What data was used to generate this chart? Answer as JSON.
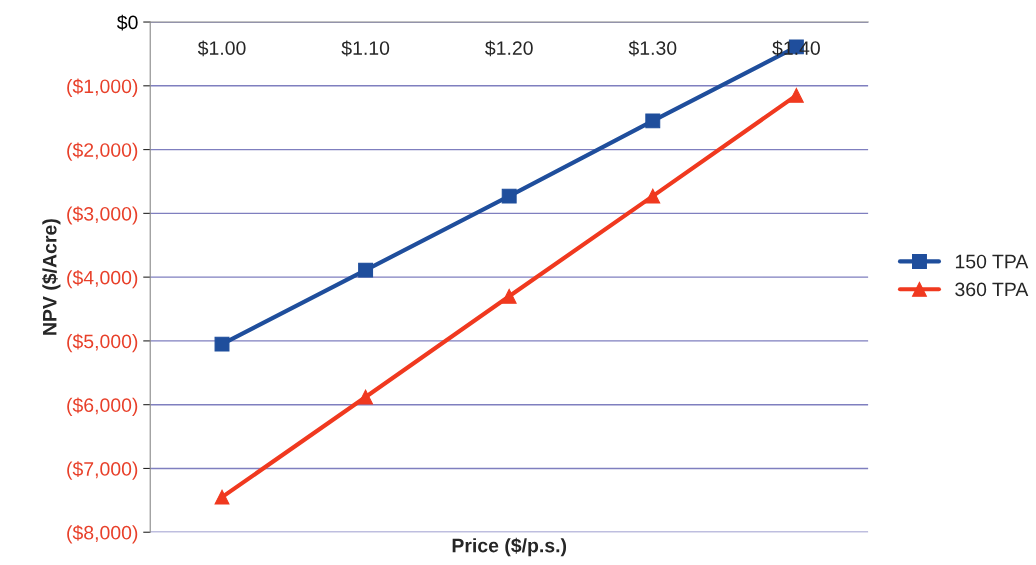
{
  "chart_data": {
    "type": "line",
    "xlabel": "Price ($/p.s.)",
    "ylabel": "NPV ($/Acre)",
    "categories": [
      "$1.00",
      "$1.10",
      "$1.20",
      "$1.30",
      "$1.40"
    ],
    "series": [
      {
        "name": "150 TPA",
        "color": "#1f4e9c",
        "marker": "square",
        "values": [
          -5050,
          -3890,
          -2730,
          -1550,
          -390
        ]
      },
      {
        "name": "360 TPA",
        "color": "#f0391f",
        "marker": "triangle",
        "values": [
          -7450,
          -5880,
          -4300,
          -2730,
          -1150
        ]
      }
    ],
    "ylim": [
      -8000,
      0
    ],
    "yticks": [
      {
        "value": 0,
        "label": "$0"
      },
      {
        "value": -1000,
        "label": "($1,000)"
      },
      {
        "value": -2000,
        "label": "($2,000)"
      },
      {
        "value": -3000,
        "label": "($3,000)"
      },
      {
        "value": -4000,
        "label": "($4,000)"
      },
      {
        "value": -5000,
        "label": "($5,000)"
      },
      {
        "value": -6000,
        "label": "($6,000)"
      },
      {
        "value": -7000,
        "label": "($7,000)"
      },
      {
        "value": -8000,
        "label": "($8,000)"
      }
    ],
    "grid": "y",
    "legend": "right",
    "line_style": "solid"
  }
}
